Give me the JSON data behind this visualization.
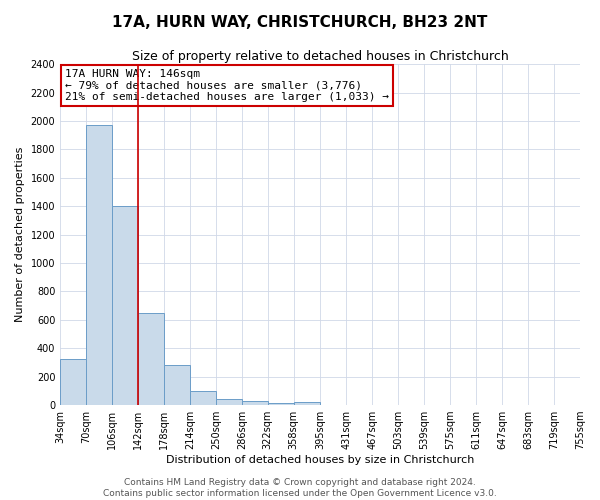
{
  "title": "17A, HURN WAY, CHRISTCHURCH, BH23 2NT",
  "subtitle": "Size of property relative to detached houses in Christchurch",
  "xlabel": "Distribution of detached houses by size in Christchurch",
  "ylabel": "Number of detached properties",
  "bin_labels": [
    "34sqm",
    "70sqm",
    "106sqm",
    "142sqm",
    "178sqm",
    "214sqm",
    "250sqm",
    "286sqm",
    "322sqm",
    "358sqm",
    "395sqm",
    "431sqm",
    "467sqm",
    "503sqm",
    "539sqm",
    "575sqm",
    "611sqm",
    "647sqm",
    "683sqm",
    "719sqm",
    "755sqm"
  ],
  "bar_values": [
    325,
    1975,
    1400,
    650,
    280,
    100,
    45,
    32,
    18,
    20,
    0,
    0,
    0,
    0,
    0,
    0,
    0,
    0,
    0,
    0
  ],
  "bar_color": "#c9daea",
  "bar_edge_color": "#6b9dc8",
  "property_line_x": 142,
  "bin_edges": [
    34,
    70,
    106,
    142,
    178,
    214,
    250,
    286,
    322,
    358,
    395,
    431,
    467,
    503,
    539,
    575,
    611,
    647,
    683,
    719,
    755
  ],
  "annotation_title": "17A HURN WAY: 146sqm",
  "annotation_line1": "← 79% of detached houses are smaller (3,776)",
  "annotation_line2": "21% of semi-detached houses are larger (1,033) →",
  "annotation_box_color": "#ffffff",
  "annotation_box_edge_color": "#cc0000",
  "ylim": [
    0,
    2400
  ],
  "yticks": [
    0,
    200,
    400,
    600,
    800,
    1000,
    1200,
    1400,
    1600,
    1800,
    2000,
    2200,
    2400
  ],
  "footer_line1": "Contains HM Land Registry data © Crown copyright and database right 2024.",
  "footer_line2": "Contains public sector information licensed under the Open Government Licence v3.0.",
  "bg_color": "#ffffff",
  "grid_color": "#d0d8e8",
  "title_fontsize": 11,
  "subtitle_fontsize": 9,
  "axis_label_fontsize": 8,
  "tick_fontsize": 7,
  "annotation_fontsize": 8,
  "footer_fontsize": 6.5
}
